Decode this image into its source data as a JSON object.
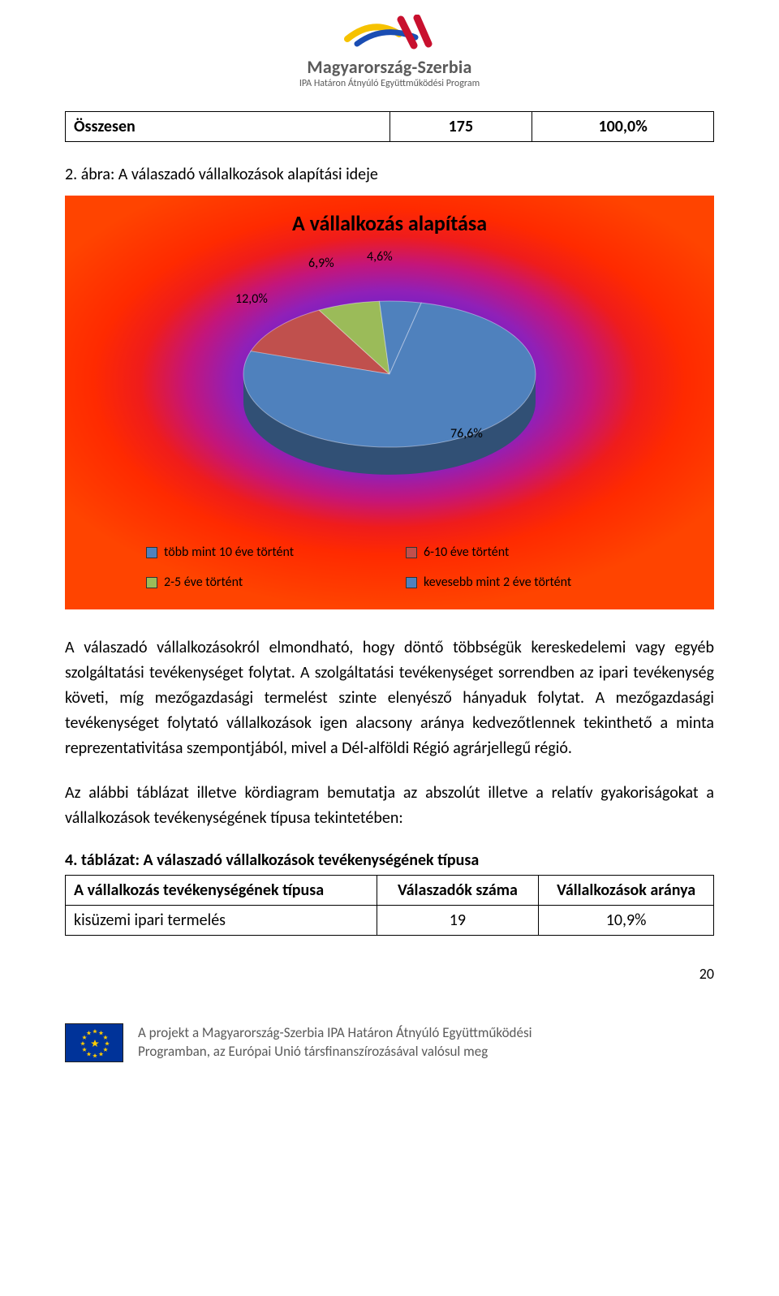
{
  "header": {
    "title": "Magyarország-Szerbia",
    "subtitle": "IPA Határon Átnyúló Együttműködési Program"
  },
  "summary_table": {
    "label": "Összesen",
    "count": "175",
    "percent": "100,0%"
  },
  "figure_caption": "2. ábra: A válaszadó vállalkozások alapítási ideje",
  "chart": {
    "type": "pie",
    "title": "A vállalkozás alapítása",
    "title_fontsize": 26,
    "background": "radial red→purple gradient",
    "slices": [
      {
        "label": "több mint 10 éve történt",
        "value": 76.6,
        "display": "76,6%",
        "color": "#4f81bd"
      },
      {
        "label": "6-10 éve történt",
        "value": 12.0,
        "display": "12,0%",
        "color": "#c0504d"
      },
      {
        "label": "2-5 éve történt",
        "value": 6.9,
        "display": "6,9%",
        "color": "#9bbb59"
      },
      {
        "label": "kevesebb mint 2 éve történt",
        "value": 4.6,
        "display": "4,6%",
        "color": "#4f81bd"
      }
    ],
    "label_fontsize": 16,
    "label_color": "#000000",
    "pie_tilt_3d": true
  },
  "paragraphs": {
    "p1": "A válaszadó vállalkozásokról elmondható, hogy döntő többségük kereskedelemi vagy egyéb szolgáltatási tevékenységet folytat. A szolgáltatási tevékenységet sorrendben az ipari tevékenység követi, míg mezőgazdasági termelést szinte elenyésző hányaduk folytat. A mezőgazdasági tevékenységet folytató vállalkozások igen alacsony aránya kedvezőtlennek tekinthető a minta reprezentativitása szempontjából, mivel a Dél-alföldi Régió agrárjellegű régió.",
    "p2": "Az alábbi táblázat illetve kördiagram bemutatja az abszolút illetve a relatív gyakoriságokat a vállalkozások tevékenységének típusa tekintetében:"
  },
  "table4": {
    "title": "4. táblázat: A válaszadó vállalkozások tevékenységének típusa",
    "headers": [
      "A vállalkozás tevékenységének típusa",
      "Válaszadók száma",
      "Vállalkozások aránya"
    ],
    "rows": [
      [
        "kisüzemi ipari termelés",
        "19",
        "10,9%"
      ]
    ]
  },
  "page_number": "20",
  "footer": {
    "line1": "A projekt a Magyarország-Szerbia IPA Határon Átnyúló Együttműködési",
    "line2": "Programban, az Európai Unió társfinanszírozásával valósul meg"
  }
}
